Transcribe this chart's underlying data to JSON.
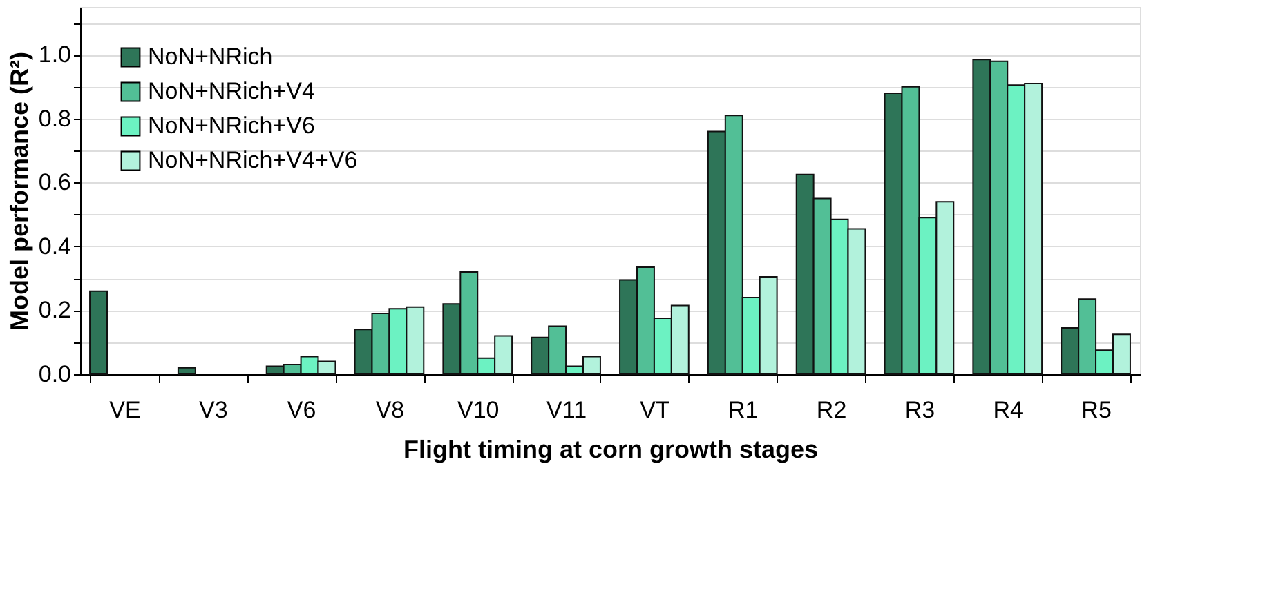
{
  "chart_data": {
    "type": "bar",
    "xlabel": "Flight timing at corn growth stages",
    "ylabel": "Model performance (R²)",
    "categories": [
      "VE",
      "V3",
      "V6",
      "V8",
      "V10",
      "V11",
      "VT",
      "R1",
      "R2",
      "R3",
      "R4",
      "R5"
    ],
    "series": [
      {
        "name": "NoN+NRich",
        "color": "#2e7558",
        "values": [
          0.26,
          0.02,
          0.025,
          0.14,
          0.22,
          0.115,
          0.295,
          0.76,
          0.625,
          0.88,
          0.985,
          0.145
        ]
      },
      {
        "name": "NoN+NRich+V4",
        "color": "#52bf96",
        "values": [
          null,
          null,
          0.03,
          0.19,
          0.32,
          0.15,
          0.335,
          0.81,
          0.55,
          0.9,
          0.98,
          0.235
        ]
      },
      {
        "name": "NoN+NRich+V6",
        "color": "#6cf2c2",
        "values": [
          null,
          null,
          0.055,
          0.205,
          0.05,
          0.025,
          0.175,
          0.24,
          0.485,
          0.49,
          0.905,
          0.075
        ]
      },
      {
        "name": "NoN+NRich+V4+V6",
        "color": "#b2f2dc",
        "values": [
          null,
          null,
          0.04,
          0.21,
          0.12,
          0.055,
          0.215,
          0.305,
          0.455,
          0.54,
          0.91,
          0.125
        ]
      }
    ],
    "ylim": [
      0,
      1.15
    ],
    "yticks": [
      {
        "value": 0,
        "label": "0.0"
      },
      {
        "value": 0.1,
        "label": null
      },
      {
        "value": 0.2,
        "label": "0.2"
      },
      {
        "value": 0.3,
        "label": null
      },
      {
        "value": 0.4,
        "label": "0.4"
      },
      {
        "value": 0.5,
        "label": null
      },
      {
        "value": 0.6,
        "label": "0.6"
      },
      {
        "value": 0.7,
        "label": null
      },
      {
        "value": 0.8,
        "label": "0.8"
      },
      {
        "value": 0.9,
        "label": null
      },
      {
        "value": 1,
        "label": "1.0"
      },
      {
        "value": 1.1,
        "label": null
      }
    ],
    "grid": "y",
    "legend": "top left"
  }
}
